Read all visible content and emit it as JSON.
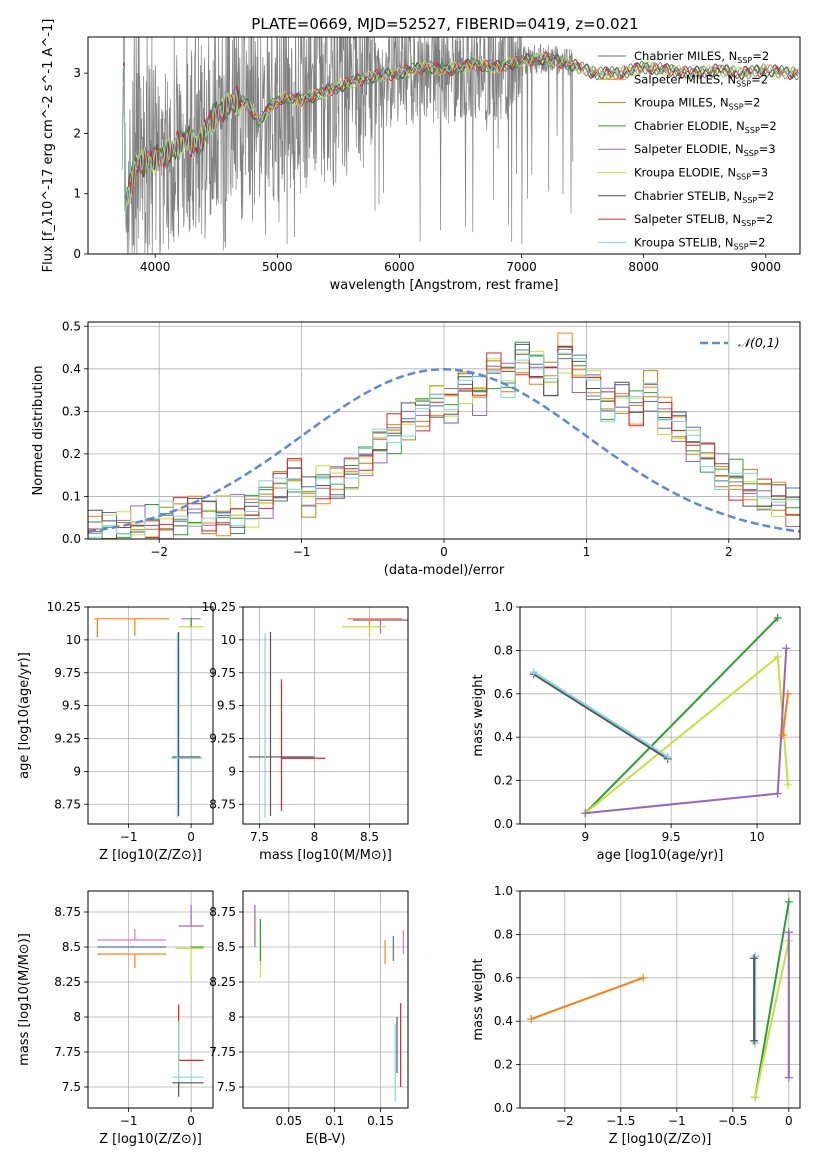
{
  "figure": {
    "title": "PLATE=0669, MJD=52527, FIBERID=0419, z=0.021"
  },
  "colors": {
    "Chabrier MILES": "#4c72b0",
    "Salpeter MILES": "#ff7f0e",
    "Kroupa MILES": "#b8860b",
    "Chabrier ELODIE": "#2ca02c",
    "Salpeter ELODIE": "#9467bd",
    "Kroupa ELODIE": "#c7e03a",
    "Chabrier STELIB": "#555555",
    "Salpeter STELIB": "#d62728",
    "Kroupa STELIB": "#7fd6e0",
    "data": "#808080",
    "normal": "#5b8bd9"
  },
  "chart_data": [
    {
      "type": "line",
      "panel": "spectrum",
      "xlabel": "wavelength [Angstrom, rest frame]",
      "ylabel": "Flux [f_λ10^-17 erg cm^-2 s^-1 A^-1]",
      "xlim": [
        3450,
        9280
      ],
      "ylim": [
        0,
        3.6
      ],
      "xticks": [
        4000,
        5000,
        6000,
        7000,
        8000,
        9000
      ],
      "yticks": [
        0,
        1,
        2,
        3
      ],
      "legend_position": "top-right",
      "legend": [
        {
          "name": "Chabrier MILES, N_SSP=2",
          "key": "Chabrier MILES"
        },
        {
          "name": "Salpeter MILES, N_SSP=2",
          "key": "Salpeter MILES"
        },
        {
          "name": "Kroupa MILES, N_SSP=2",
          "key": "Kroupa MILES"
        },
        {
          "name": "Chabrier ELODIE, N_SSP=2",
          "key": "Chabrier ELODIE"
        },
        {
          "name": "Salpeter ELODIE, N_SSP=3",
          "key": "Salpeter ELODIE"
        },
        {
          "name": "Kroupa ELODIE, N_SSP=3",
          "key": "Kroupa ELODIE"
        },
        {
          "name": "Chabrier STELIB, N_SSP=2",
          "key": "Chabrier STELIB"
        },
        {
          "name": "Salpeter STELIB, N_SSP=2",
          "key": "Salpeter STELIB"
        },
        {
          "name": "Kroupa STELIB, N_SSP=2",
          "key": "Kroupa STELIB"
        }
      ],
      "model_shape": {
        "x": [
          3750,
          3850,
          3950,
          4050,
          4150,
          4250,
          4350,
          4450,
          4550,
          4650,
          4750,
          4850,
          4950,
          5050,
          5200,
          5400,
          5600,
          5800,
          6000,
          6200,
          6400,
          6600,
          6800,
          7000,
          7200,
          7400,
          7600,
          7800,
          8000,
          8200,
          8400,
          8600,
          8800,
          9000,
          9200
        ],
        "y": [
          0.8,
          1.5,
          1.55,
          1.6,
          1.75,
          1.9,
          1.8,
          2.2,
          2.4,
          2.55,
          2.5,
          2.2,
          2.45,
          2.6,
          2.55,
          2.7,
          2.85,
          2.95,
          3.0,
          3.1,
          3.05,
          3.15,
          3.1,
          3.2,
          3.25,
          3.15,
          3.0,
          3.0,
          3.1,
          3.05,
          3.0,
          3.05,
          3.0,
          3.05,
          3.0
        ]
      },
      "data_visible_until": 7420
    },
    {
      "type": "line",
      "panel": "residual-histogram",
      "xlabel": "(data-model)/error",
      "ylabel": "Normed distribution",
      "xlim": [
        -2.5,
        2.5
      ],
      "ylim": [
        0,
        0.51
      ],
      "xticks": [
        -2,
        -1,
        0,
        1,
        2
      ],
      "yticks": [
        0.0,
        0.1,
        0.2,
        0.3,
        0.4,
        0.5
      ],
      "legend": "𝒩(0,1)",
      "legend_position": "top-right",
      "bin_width": 0.1,
      "bin_start": -2.5,
      "hist": [
        0.02,
        0.02,
        0.025,
        0.03,
        0.035,
        0.04,
        0.05,
        0.06,
        0.05,
        0.055,
        0.06,
        0.07,
        0.09,
        0.12,
        0.15,
        0.1,
        0.13,
        0.14,
        0.16,
        0.18,
        0.22,
        0.25,
        0.28,
        0.3,
        0.33,
        0.32,
        0.36,
        0.34,
        0.4,
        0.38,
        0.43,
        0.41,
        0.38,
        0.44,
        0.39,
        0.36,
        0.32,
        0.34,
        0.31,
        0.35,
        0.29,
        0.26,
        0.22,
        0.2,
        0.16,
        0.14,
        0.12,
        0.1,
        0.09,
        0.07,
        0.05,
        0.045,
        0.04,
        0.035,
        0.03
      ]
    },
    {
      "type": "scatter",
      "panel": "age-vs-Z",
      "xlabel": "Z [log10(Z/Z⊙)]",
      "ylabel": "age [log10(age/yr)]",
      "xlim": [
        -1.65,
        0.35
      ],
      "ylim": [
        8.6,
        10.25
      ],
      "xticks": [
        -1,
        0
      ],
      "yticks": [
        8.75,
        9.0,
        9.25,
        9.5,
        9.75,
        10.0,
        10.25
      ]
    },
    {
      "type": "scatter",
      "panel": "age-vs-mass",
      "xlabel": "mass [log10(M/M⊙)]",
      "ylabel": "",
      "xlim": [
        7.35,
        8.85
      ],
      "ylim": [
        8.6,
        10.25
      ],
      "xticks": [
        7.5,
        8.0,
        8.5
      ],
      "yticks": [
        8.75,
        9.0,
        9.25,
        9.5,
        9.75,
        10.0,
        10.25
      ]
    },
    {
      "type": "line",
      "panel": "massweight-vs-age",
      "xlabel": "age [log10(age/yr)]",
      "ylabel": "mass weight",
      "xlim": [
        8.62,
        10.25
      ],
      "ylim": [
        0.0,
        1.0
      ],
      "xticks": [
        9.0,
        9.5,
        10.0
      ],
      "yticks": [
        0.0,
        0.2,
        0.4,
        0.6,
        0.8,
        1.0
      ],
      "series": [
        {
          "key": "Chabrier ELODIE",
          "x": [
            9.0,
            10.12
          ],
          "y": [
            0.05,
            0.95
          ]
        },
        {
          "key": "Kroupa ELODIE",
          "x": [
            9.0,
            10.12,
            10.18
          ],
          "y": [
            0.05,
            0.77,
            0.18
          ]
        },
        {
          "key": "Salpeter ELODIE",
          "x": [
            9.0,
            10.12,
            10.17
          ],
          "y": [
            0.05,
            0.14,
            0.81
          ]
        },
        {
          "key": "Salpeter MILES",
          "x": [
            10.15,
            10.18
          ],
          "y": [
            0.41,
            0.6
          ]
        },
        {
          "key": "Chabrier STELIB",
          "x": [
            8.7,
            9.48
          ],
          "y": [
            0.69,
            0.3
          ]
        },
        {
          "key": "Kroupa STELIB",
          "x": [
            8.7,
            9.48
          ],
          "y": [
            0.7,
            0.31
          ]
        }
      ]
    },
    {
      "type": "scatter",
      "panel": "mass-vs-Z",
      "xlabel": "Z [log10(Z/Z⊙)]",
      "ylabel": "mass [log10(M/M⊙)]",
      "xlim": [
        -1.65,
        0.35
      ],
      "ylim": [
        7.35,
        8.9
      ],
      "xticks": [
        -1,
        0
      ],
      "yticks": [
        7.5,
        7.75,
        8.0,
        8.25,
        8.5,
        8.75
      ]
    },
    {
      "type": "scatter",
      "panel": "mass-vs-EBV",
      "xlabel": "E(B-V)",
      "ylabel": "",
      "xlim": [
        0.0,
        0.18
      ],
      "ylim": [
        7.35,
        8.9
      ],
      "xticks": [
        0.05,
        0.1,
        0.15
      ],
      "yticks": [
        7.5,
        7.75,
        8.0,
        8.25,
        8.5,
        8.75
      ]
    },
    {
      "type": "line",
      "panel": "massweight-vs-Z",
      "xlabel": "Z [log10(Z/Z⊙)]",
      "ylabel": "mass weight",
      "xlim": [
        -2.4,
        0.1
      ],
      "ylim": [
        0.0,
        1.0
      ],
      "xticks": [
        -2.0,
        -1.5,
        -1.0,
        -0.5,
        0.0
      ],
      "yticks": [
        0.0,
        0.2,
        0.4,
        0.6,
        0.8,
        1.0
      ],
      "series": [
        {
          "key": "Salpeter MILES",
          "x": [
            -2.3,
            -1.3
          ],
          "y": [
            0.41,
            0.6
          ]
        },
        {
          "key": "Kroupa STELIB",
          "x": [
            -0.3,
            -0.3
          ],
          "y": [
            0.3,
            0.7
          ]
        },
        {
          "key": "Chabrier STELIB",
          "x": [
            -0.31,
            -0.31
          ],
          "y": [
            0.31,
            0.69
          ]
        },
        {
          "key": "Chabrier ELODIE",
          "x": [
            -0.3,
            0.0
          ],
          "y": [
            0.05,
            0.95
          ]
        },
        {
          "key": "Kroupa ELODIE",
          "x": [
            -0.3,
            0.0
          ],
          "y": [
            0.05,
            0.77
          ]
        },
        {
          "key": "Salpeter ELODIE",
          "x": [
            0.0,
            0.0
          ],
          "y": [
            0.14,
            0.81
          ]
        }
      ]
    }
  ]
}
